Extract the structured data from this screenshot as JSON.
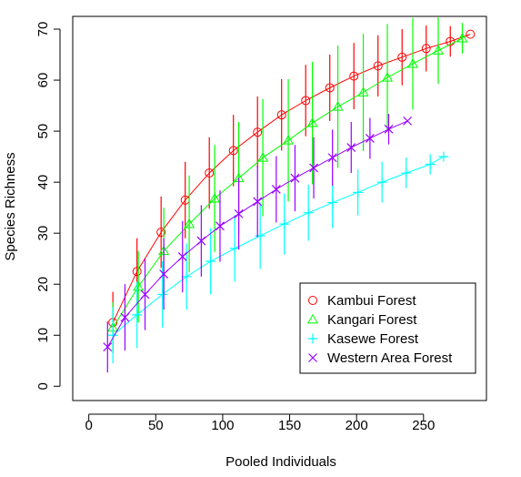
{
  "chart_data": {
    "type": "line",
    "xlabel": "Pooled Individuals",
    "ylabel": "Species Richness",
    "xlim": [
      -12,
      297
    ],
    "ylim": [
      -2.8,
      72.5
    ],
    "xticks": [
      0,
      50,
      100,
      150,
      200,
      250
    ],
    "yticks": [
      0,
      10,
      20,
      30,
      40,
      50,
      60,
      70
    ],
    "grid": false,
    "legend_position": "bottom-right",
    "series": [
      {
        "name": "Kambui Forest",
        "color": "#ff0000",
        "marker": "circle",
        "x": [
          18,
          36,
          54,
          72,
          90,
          108,
          126,
          144,
          162,
          180,
          198,
          216,
          234,
          252,
          270,
          285
        ],
        "y": [
          12.5,
          22.5,
          30.2,
          36.5,
          41.8,
          46.2,
          49.8,
          53.2,
          56.0,
          58.5,
          60.8,
          62.8,
          64.5,
          66.2,
          67.6,
          69.0
        ],
        "err": [
          6.0,
          6.5,
          7.0,
          7.5,
          7.0,
          7.0,
          7.0,
          7.0,
          7.0,
          6.5,
          6.5,
          6.0,
          5.5,
          4.5,
          3.0,
          0
        ]
      },
      {
        "name": "Kangari Forest",
        "color": "#00ff00",
        "marker": "triangle",
        "x": [
          18,
          37,
          56,
          75,
          94,
          112,
          130,
          149,
          167,
          186,
          205,
          223,
          242,
          261,
          279
        ],
        "y": [
          11.5,
          19.5,
          26.5,
          31.8,
          36.8,
          40.8,
          44.8,
          48.2,
          51.6,
          54.8,
          57.6,
          60.5,
          63.2,
          65.8,
          68.2
        ],
        "err": [
          5.0,
          7.0,
          8.5,
          9.5,
          10.5,
          11.0,
          11.5,
          12.0,
          12.0,
          12.0,
          11.5,
          10.5,
          9.0,
          6.5,
          3.0
        ]
      },
      {
        "name": "Kasewe Forest",
        "color": "#00ffff",
        "marker": "plus",
        "x": [
          18,
          36,
          55,
          73,
          91,
          109,
          128,
          146,
          164,
          182,
          201,
          219,
          237,
          255,
          265
        ],
        "y": [
          10.0,
          14.0,
          18.0,
          21.5,
          24.5,
          27.0,
          29.5,
          31.8,
          34.0,
          36.0,
          38.0,
          40.0,
          41.8,
          43.5,
          45.0
        ],
        "err": [
          5.5,
          6.5,
          6.5,
          6.5,
          6.5,
          6.5,
          6.5,
          6.0,
          5.5,
          5.0,
          4.5,
          4.0,
          3.0,
          2.0,
          0
        ]
      },
      {
        "name": "Western Area Forest",
        "color": "#9900ff",
        "marker": "x",
        "x": [
          14,
          27,
          42,
          56,
          70,
          84,
          98,
          112,
          126,
          140,
          154,
          168,
          182,
          196,
          210,
          224,
          238
        ],
        "y": [
          7.7,
          13.5,
          18.0,
          22.0,
          25.4,
          28.5,
          31.4,
          33.8,
          36.2,
          38.6,
          40.8,
          42.8,
          44.8,
          46.8,
          48.6,
          50.4,
          52.0
        ],
        "err": [
          5.0,
          6.5,
          7.0,
          7.0,
          7.0,
          7.0,
          7.0,
          7.0,
          7.0,
          6.5,
          6.5,
          6.0,
          5.5,
          5.0,
          4.0,
          3.0,
          0
        ]
      }
    ]
  }
}
